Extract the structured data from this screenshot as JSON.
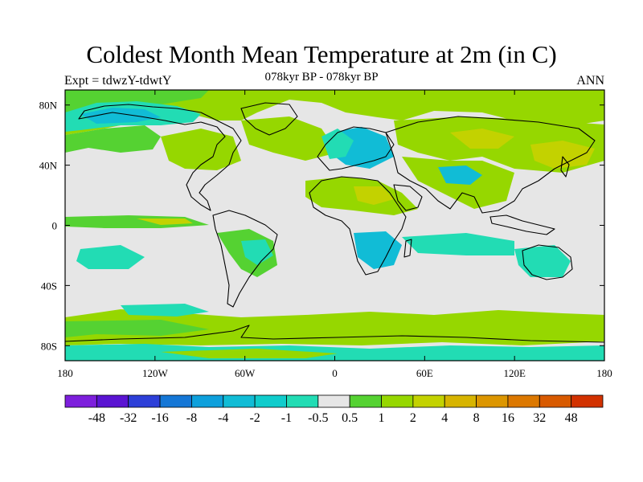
{
  "header": {
    "title": "Coldest Month Mean Temperature at 2m (in C)",
    "left_label": "Expt = tdwzY-tdwtY",
    "center_label": "078kyr BP - 078kyr BP",
    "right_label": "ANN"
  },
  "map": {
    "projection": "cylindrical-equidistant",
    "lon_range": [
      -180,
      180
    ],
    "lat_range": [
      -90,
      90
    ],
    "background_color": "#e6e6e6",
    "coastline_color": "#000000",
    "x_ticks": [
      {
        "lon": -180,
        "label": "180"
      },
      {
        "lon": -120,
        "label": "120W"
      },
      {
        "lon": -60,
        "label": "60W"
      },
      {
        "lon": 0,
        "label": "0"
      },
      {
        "lon": 60,
        "label": "60E"
      },
      {
        "lon": 120,
        "label": "120E"
      },
      {
        "lon": 180,
        "label": "180"
      }
    ],
    "y_ticks": [
      {
        "lat": 80,
        "label": "80N"
      },
      {
        "lat": 40,
        "label": "40N"
      },
      {
        "lat": 0,
        "label": "0"
      },
      {
        "lat": -40,
        "label": "40S"
      },
      {
        "lat": -80,
        "label": "80S"
      }
    ]
  },
  "colorbar": {
    "colors": [
      "#7d1fdc",
      "#5a14d2",
      "#2d3fd8",
      "#1577d6",
      "#0ea0dc",
      "#11bcd6",
      "#10cccc",
      "#22dcb4",
      "#e6e6e6",
      "#55d232",
      "#96d700",
      "#c3d200",
      "#d7b400",
      "#dc9600",
      "#dc7800",
      "#d85a00",
      "#d23200"
    ],
    "labels": [
      "-48",
      "-32",
      "-16",
      "-8",
      "-4",
      "-2",
      "-1",
      "-0.5",
      "0.5",
      "1",
      "2",
      "4",
      "8",
      "16",
      "32",
      "48"
    ]
  },
  "chart_data": {
    "type": "heatmap",
    "title": "Coldest Month Mean Temperature at 2m (in C)",
    "subtitle": "078kyr BP - 078kyr BP",
    "units": "C",
    "levels": [
      -48,
      -32,
      -16,
      -8,
      -4,
      -2,
      -1,
      -0.5,
      0.5,
      1,
      2,
      4,
      8,
      16,
      32,
      48
    ],
    "regions": [
      {
        "region": "north-america-north",
        "lon": [
          -170,
          -60
        ],
        "lat": [
          55,
          85
        ],
        "level": -2
      },
      {
        "region": "north-america-mid",
        "lon": [
          -130,
          -70
        ],
        "lat": [
          40,
          55
        ],
        "level": 1
      },
      {
        "region": "greenland",
        "lon": [
          -60,
          -20
        ],
        "lat": [
          62,
          82
        ],
        "level": 1
      },
      {
        "region": "arctic-ocean",
        "lon": [
          -40,
          40
        ],
        "lat": [
          78,
          90
        ],
        "level": 2
      },
      {
        "region": "europe",
        "lon": [
          0,
          40
        ],
        "lat": [
          40,
          60
        ],
        "level": -2
      },
      {
        "region": "siberia",
        "lon": [
          60,
          140
        ],
        "lat": [
          55,
          75
        ],
        "level": 2
      },
      {
        "region": "central-asia",
        "lon": [
          40,
          120
        ],
        "lat": [
          30,
          55
        ],
        "level": 1
      },
      {
        "region": "tibet",
        "lon": [
          70,
          100
        ],
        "lat": [
          28,
          38
        ],
        "level": -2
      },
      {
        "region": "north-africa-arabia",
        "lon": [
          -20,
          60
        ],
        "lat": [
          10,
          32
        ],
        "level": 1
      },
      {
        "region": "southern-africa",
        "lon": [
          10,
          40
        ],
        "lat": [
          -35,
          -5
        ],
        "level": -2
      },
      {
        "region": "south-america",
        "lon": [
          -80,
          -35
        ],
        "lat": [
          -35,
          5
        ],
        "level": -1
      },
      {
        "region": "australia",
        "lon": [
          115,
          155
        ],
        "lat": [
          -40,
          -12
        ],
        "level": -1
      },
      {
        "region": "indian-ocean-south",
        "lon": [
          30,
          120
        ],
        "lat": [
          -15,
          -5
        ],
        "level": -1
      },
      {
        "region": "southern-ocean",
        "lon": [
          -180,
          180
        ],
        "lat": [
          -75,
          -50
        ],
        "level": 1
      },
      {
        "region": "antarctica",
        "lon": [
          -180,
          180
        ],
        "lat": [
          -90,
          -75
        ],
        "level": -1
      }
    ]
  }
}
